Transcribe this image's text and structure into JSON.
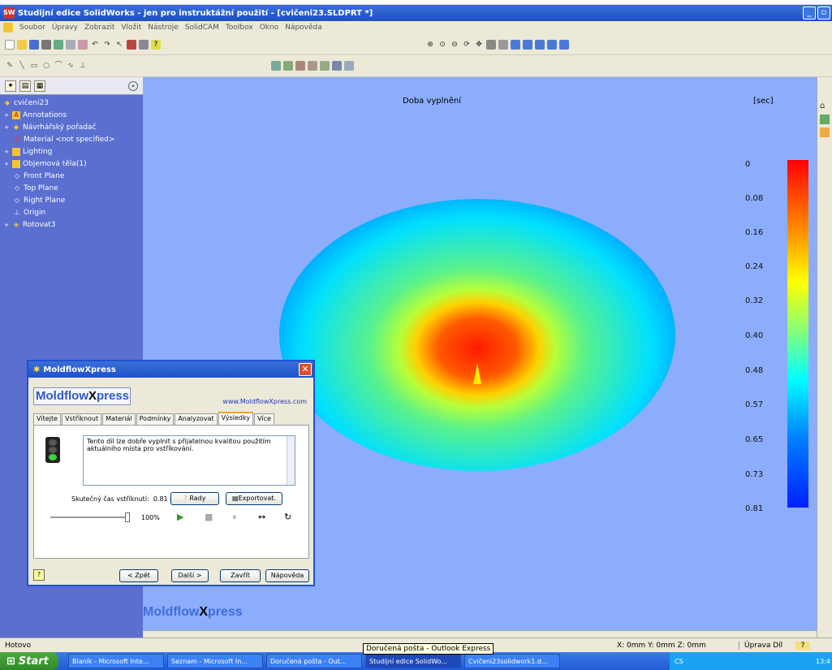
{
  "window": {
    "title": "Studijní edice SolidWorks - jen pro instruktážní použití - [cvičeni23.SLDPRT *]"
  },
  "menu": [
    "Soubor",
    "Úpravy",
    "Zobrazit",
    "Vložit",
    "Nástroje",
    "SolidCAM",
    "Toolbox",
    "Okno",
    "Nápověda"
  ],
  "tree": {
    "root": "cvičeni23",
    "items": [
      "Annotations",
      "Návrhářský pořadač",
      "Material <not specified>",
      "Lighting",
      "Objemová těla(1)",
      "Front Plane",
      "Top Plane",
      "Right Plane",
      "Origin",
      "Rotovat3"
    ]
  },
  "viewport": {
    "title": "Doba vyplnění",
    "unit": "[sec]",
    "legend": [
      "0",
      "0.08",
      "0.16",
      "0.24",
      "0.32",
      "0.40",
      "0.48",
      "0.57",
      "0.65",
      "0.73",
      "0.81"
    ],
    "brand_a": "Moldflow",
    "brand_b": "X",
    "brand_c": "press"
  },
  "dialog": {
    "title": "MoldflowXpress",
    "logo_a": "Moldflow",
    "logo_b": "X",
    "logo_c": "press",
    "url": "www.MoldflowXpress.com",
    "tabs": [
      "Vítejte",
      "Vstříknout",
      "Materiál",
      "Podmínky",
      "Analyzovat",
      "Výsledky",
      "Více"
    ],
    "message": "Tento díl lze dobře vyplnit s přijatelnou kvalitou použitím aktuálního místa pro vstříkování.",
    "realtime_label": "Skutečný čas vstříknutí:",
    "realtime_value": "0.81 sec",
    "advice_btn": "Rady",
    "export_btn": "Exportovat.",
    "percent": "100%",
    "back_btn": "< Zpět",
    "next_btn": "Další >",
    "close_btn": "Zavřít",
    "help_btn": "Nápověda"
  },
  "status": {
    "left": "Hotovo",
    "coords": "X: 0mm Y: 0mm Z: 0mm",
    "mode": "Úprava Díl",
    "help": "?"
  },
  "tooltip": "Doručená pošta - Outlook Express",
  "taskbar": {
    "start": "Start",
    "tasks": [
      "Blaník - Microsoft Inte...",
      "Seznam - Microsoft In...",
      "Doručená pošta - Out...",
      "Studijní edice SolidWo...",
      "Cvičeni23solidwork1.d..."
    ],
    "lang": "CS",
    "clock": "13:4"
  }
}
